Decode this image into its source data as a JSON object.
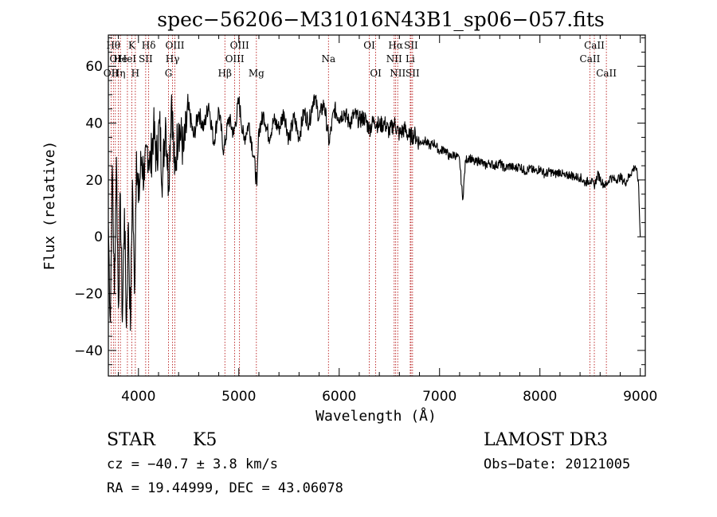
{
  "chart_data": {
    "type": "line",
    "title": "spec−56206−M31016N43B1_sp06−057.fits",
    "xlabel": "Wavelength (Å)",
    "ylabel": "Flux (relative)",
    "xlim": [
      3700,
      9050
    ],
    "ylim": [
      -49,
      71
    ],
    "x_ticks": [
      4000,
      5000,
      6000,
      7000,
      8000,
      9000
    ],
    "y_ticks": [
      -40,
      -20,
      0,
      20,
      40,
      60
    ],
    "y_tick_labels": [
      "−40",
      "−20",
      "0",
      "20",
      "40",
      "60"
    ],
    "spectrum_envelope": [
      [
        3700,
        5
      ],
      [
        3720,
        -30
      ],
      [
        3740,
        25
      ],
      [
        3760,
        -20
      ],
      [
        3780,
        28
      ],
      [
        3800,
        -25
      ],
      [
        3820,
        15
      ],
      [
        3840,
        -30
      ],
      [
        3860,
        10
      ],
      [
        3880,
        -32
      ],
      [
        3900,
        5
      ],
      [
        3920,
        -33
      ],
      [
        3940,
        20
      ],
      [
        3960,
        -20
      ],
      [
        3980,
        30
      ],
      [
        4000,
        12
      ],
      [
        4030,
        28
      ],
      [
        4060,
        20
      ],
      [
        4090,
        32
      ],
      [
        4120,
        25
      ],
      [
        4150,
        38
      ],
      [
        4180,
        27
      ],
      [
        4210,
        40
      ],
      [
        4240,
        20
      ],
      [
        4270,
        42
      ],
      [
        4300,
        18
      ],
      [
        4330,
        50
      ],
      [
        4360,
        22
      ],
      [
        4400,
        40
      ],
      [
        4450,
        30
      ],
      [
        4500,
        45
      ],
      [
        4550,
        35
      ],
      [
        4600,
        44
      ],
      [
        4650,
        38
      ],
      [
        4700,
        47
      ],
      [
        4750,
        33
      ],
      [
        4800,
        45
      ],
      [
        4850,
        30
      ],
      [
        4900,
        42
      ],
      [
        4950,
        36
      ],
      [
        5000,
        48
      ],
      [
        5050,
        34
      ],
      [
        5100,
        40
      ],
      [
        5150,
        28
      ],
      [
        5180,
        18
      ],
      [
        5200,
        38
      ],
      [
        5250,
        43
      ],
      [
        5300,
        35
      ],
      [
        5350,
        41
      ],
      [
        5400,
        38
      ],
      [
        5450,
        44
      ],
      [
        5500,
        34
      ],
      [
        5550,
        42
      ],
      [
        5600,
        35
      ],
      [
        5650,
        44
      ],
      [
        5700,
        40
      ],
      [
        5750,
        50
      ],
      [
        5800,
        42
      ],
      [
        5850,
        47
      ],
      [
        5900,
        33
      ],
      [
        5950,
        45
      ],
      [
        6000,
        42
      ],
      [
        6050,
        44
      ],
      [
        6100,
        40
      ],
      [
        6150,
        43
      ],
      [
        6200,
        41
      ],
      [
        6250,
        42
      ],
      [
        6300,
        38
      ],
      [
        6350,
        41
      ],
      [
        6400,
        39
      ],
      [
        6450,
        40
      ],
      [
        6500,
        37
      ],
      [
        6550,
        40
      ],
      [
        6600,
        36
      ],
      [
        6650,
        38
      ],
      [
        6700,
        35
      ],
      [
        6750,
        36
      ],
      [
        6800,
        33
      ],
      [
        6850,
        34
      ],
      [
        6900,
        32
      ],
      [
        6950,
        33
      ],
      [
        7000,
        30
      ],
      [
        7050,
        31
      ],
      [
        7100,
        28
      ],
      [
        7150,
        29
      ],
      [
        7200,
        27
      ],
      [
        7230,
        13
      ],
      [
        7260,
        27
      ],
      [
        7300,
        28
      ],
      [
        7350,
        26
      ],
      [
        7400,
        27
      ],
      [
        7450,
        25
      ],
      [
        7500,
        26
      ],
      [
        7550,
        25
      ],
      [
        7600,
        26
      ],
      [
        7650,
        24
      ],
      [
        7700,
        25
      ],
      [
        7750,
        24
      ],
      [
        7800,
        25
      ],
      [
        7850,
        23
      ],
      [
        7900,
        24
      ],
      [
        7950,
        23
      ],
      [
        8000,
        24
      ],
      [
        8050,
        22
      ],
      [
        8100,
        23
      ],
      [
        8150,
        22
      ],
      [
        8200,
        23
      ],
      [
        8250,
        21
      ],
      [
        8300,
        22
      ],
      [
        8350,
        21
      ],
      [
        8400,
        21
      ],
      [
        8450,
        19
      ],
      [
        8500,
        20
      ],
      [
        8540,
        18
      ],
      [
        8580,
        22
      ],
      [
        8620,
        19
      ],
      [
        8660,
        18
      ],
      [
        8700,
        21
      ],
      [
        8750,
        20
      ],
      [
        8800,
        21
      ],
      [
        8850,
        19
      ],
      [
        8900,
        22
      ],
      [
        8950,
        25
      ],
      [
        8980,
        20
      ],
      [
        9000,
        0
      ]
    ],
    "emission_lines": [
      {
        "wavelength": 3727,
        "label": "OII",
        "row": 3
      },
      {
        "wavelength": 3750,
        "label": "Hθ",
        "row": 1
      },
      {
        "wavelength": 3770,
        "label": "OI",
        "row": 2
      },
      {
        "wavelength": 3800,
        "label": "Hη",
        "row": 3
      },
      {
        "wavelength": 3820,
        "label": "He",
        "row": 2
      },
      {
        "wavelength": 3890,
        "label": "HeI",
        "row": 2
      },
      {
        "wavelength": 3934,
        "label": "K",
        "row": 1
      },
      {
        "wavelength": 3969,
        "label": "H",
        "row": 3
      },
      {
        "wavelength": 4072,
        "label": "SII",
        "row": 2
      },
      {
        "wavelength": 4102,
        "label": "Hδ",
        "row": 1
      },
      {
        "wavelength": 4300,
        "label": "G",
        "row": 3
      },
      {
        "wavelength": 4340,
        "label": "Hγ",
        "row": 2
      },
      {
        "wavelength": 4363,
        "label": "OIII",
        "row": 1
      },
      {
        "wavelength": 4861,
        "label": "Hβ",
        "row": 3
      },
      {
        "wavelength": 4959,
        "label": "OIII",
        "row": 2
      },
      {
        "wavelength": 5007,
        "label": "OIII",
        "row": 1
      },
      {
        "wavelength": 5175,
        "label": "Mg",
        "row": 3
      },
      {
        "wavelength": 5893,
        "label": "Na",
        "row": 2
      },
      {
        "wavelength": 6300,
        "label": "OI",
        "row": 1
      },
      {
        "wavelength": 6364,
        "label": "OI",
        "row": 3
      },
      {
        "wavelength": 6548,
        "label": "NII",
        "row": 2
      },
      {
        "wavelength": 6563,
        "label": "Hα",
        "row": 1
      },
      {
        "wavelength": 6583,
        "label": "NII",
        "row": 3
      },
      {
        "wavelength": 6708,
        "label": "Li",
        "row": 2
      },
      {
        "wavelength": 6716,
        "label": "SII",
        "row": 1
      },
      {
        "wavelength": 6731,
        "label": "SII",
        "row": 3
      },
      {
        "wavelength": 8498,
        "label": "CaII",
        "row": 2
      },
      {
        "wavelength": 8542,
        "label": "CaII",
        "row": 1
      },
      {
        "wavelength": 8662,
        "label": "CaII",
        "row": 3
      }
    ],
    "colors": {
      "spectrum": "#000000",
      "lines": "#b00000",
      "axes": "#000000"
    }
  },
  "info": {
    "object_class": "STAR",
    "subclass": "K5",
    "survey": "LAMOST DR3",
    "redshift": "cz = −40.7 ± 3.8 km/s",
    "obs_date": "Obs−Date: 20121005",
    "coords": "RA =  19.44999, DEC =  43.06078"
  }
}
